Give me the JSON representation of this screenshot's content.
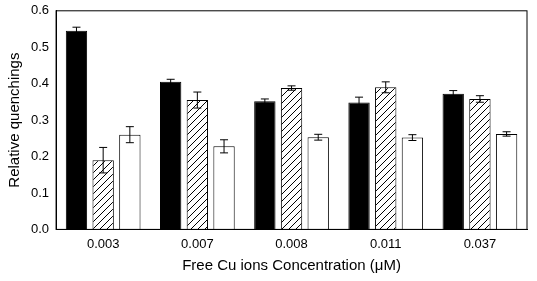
{
  "chart_data": {
    "type": "bar",
    "x_label": "Free Cu ions Concentration (μM)",
    "y_label": "Relative quenchings",
    "categories": [
      "0.003",
      "0.007",
      "0.008",
      "0.011",
      "0.037"
    ],
    "series": [
      {
        "color": "#000000",
        "values": [
          0.545,
          0.405,
          0.352,
          0.348,
          0.372
        ],
        "errors": [
          0.01,
          0.007,
          0.006,
          0.015,
          0.009
        ]
      },
      {
        "color": "#000000",
        "values": [
          0.19,
          0.355,
          0.388,
          0.39,
          0.358
        ],
        "errors": [
          0.035,
          0.022,
          0.006,
          0.015,
          0.009
        ]
      },
      {
        "color": "#ffffff",
        "values": [
          0.26,
          0.228,
          0.253,
          0.252,
          0.262
        ],
        "errors": [
          0.022,
          0.018,
          0.008,
          0.008,
          0.006
        ]
      }
    ],
    "ylim": [
      0,
      0.6
    ],
    "yticks": [
      {
        "value": 0,
        "label": "0.0"
      },
      0.1,
      0.2,
      0.3,
      0.4,
      0.5,
      0.6
    ],
    "grid": false
  }
}
